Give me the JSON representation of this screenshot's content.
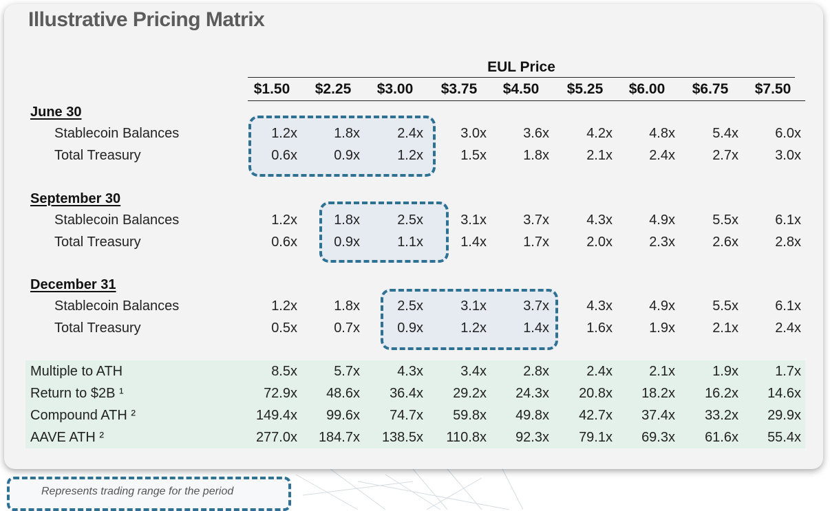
{
  "title": "Illustrative Pricing Matrix",
  "header": {
    "group_label": "EUL Price",
    "prices": [
      "$1.50",
      "$2.25",
      "$3.00",
      "$3.75",
      "$4.50",
      "$5.25",
      "$6.00",
      "$6.75",
      "$7.50"
    ]
  },
  "sections": [
    {
      "title": "June 30",
      "rows": [
        {
          "label": "Stablecoin Balances",
          "values": [
            "1.2x",
            "1.8x",
            "2.4x",
            "3.0x",
            "3.6x",
            "4.2x",
            "4.8x",
            "5.4x",
            "6.0x"
          ]
        },
        {
          "label": "Total Treasury",
          "values": [
            "0.6x",
            "0.9x",
            "1.2x",
            "1.5x",
            "1.8x",
            "2.1x",
            "2.4x",
            "2.7x",
            "3.0x"
          ]
        }
      ]
    },
    {
      "title": "September 30",
      "rows": [
        {
          "label": "Stablecoin Balances",
          "values": [
            "1.2x",
            "1.8x",
            "2.5x",
            "3.1x",
            "3.7x",
            "4.3x",
            "4.9x",
            "5.5x",
            "6.1x"
          ]
        },
        {
          "label": "Total Treasury",
          "values": [
            "0.6x",
            "0.9x",
            "1.1x",
            "1.4x",
            "1.7x",
            "2.0x",
            "2.3x",
            "2.6x",
            "2.8x"
          ]
        }
      ]
    },
    {
      "title": "December 31",
      "rows": [
        {
          "label": "Stablecoin Balances",
          "values": [
            "1.2x",
            "1.8x",
            "2.5x",
            "3.1x",
            "3.7x",
            "4.3x",
            "4.9x",
            "5.5x",
            "6.1x"
          ]
        },
        {
          "label": "Total Treasury",
          "values": [
            "0.5x",
            "0.7x",
            "0.9x",
            "1.2x",
            "1.4x",
            "1.6x",
            "1.9x",
            "2.1x",
            "2.4x"
          ]
        }
      ]
    }
  ],
  "summary_rows": [
    {
      "label": "Multiple to ATH",
      "values": [
        "8.5x",
        "5.7x",
        "4.3x",
        "3.4x",
        "2.8x",
        "2.4x",
        "2.1x",
        "1.9x",
        "1.7x"
      ]
    },
    {
      "label": "Return to $2B ¹",
      "values": [
        "72.9x",
        "48.6x",
        "36.4x",
        "29.2x",
        "24.3x",
        "20.8x",
        "18.2x",
        "16.2x",
        "14.6x"
      ]
    },
    {
      "label": "Compound ATH ²",
      "values": [
        "149.4x",
        "99.6x",
        "74.7x",
        "59.8x",
        "49.8x",
        "42.7x",
        "37.4x",
        "33.2x",
        "29.9x"
      ]
    },
    {
      "label": "AAVE ATH ²",
      "values": [
        "277.0x",
        "184.7x",
        "138.5x",
        "110.8x",
        "92.3x",
        "79.1x",
        "69.3x",
        "61.6x",
        "55.4x"
      ]
    }
  ],
  "legend": {
    "text": "Represents trading range for the period"
  },
  "colors": {
    "highlight_border": "#2e7193",
    "summary_band": "#e3f1ea",
    "card_background": "#f3f3f3"
  }
}
